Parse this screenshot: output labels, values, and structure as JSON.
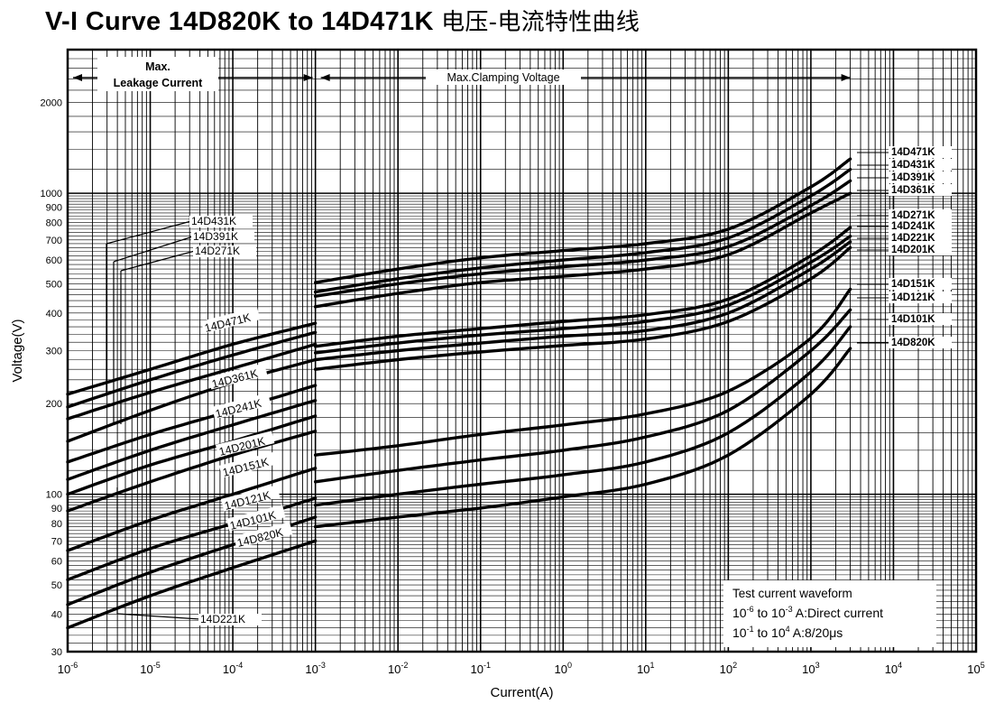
{
  "title": "V-I Curve 14D820K to 14D471K",
  "title_cn": "电压-电流特性曲线",
  "chart_data": {
    "type": "line",
    "title": "V-I Curve 14D820K to 14D471K 电压-电流特性曲线",
    "xlabel": "Current(A)",
    "ylabel": "Voltage(V)",
    "x_scale": "log",
    "y_scale": "log",
    "xlim": [
      1e-06,
      100000
    ],
    "ylim": [
      30,
      3000
    ],
    "grid": true,
    "x_ticks": [
      {
        "value": 1e-06,
        "base": "10",
        "exp": "-6"
      },
      {
        "value": 1e-05,
        "base": "10",
        "exp": "-5"
      },
      {
        "value": 0.0001,
        "base": "10",
        "exp": "-4"
      },
      {
        "value": 0.001,
        "base": "10",
        "exp": "-3"
      },
      {
        "value": 0.01,
        "base": "10",
        "exp": "-2"
      },
      {
        "value": 0.1,
        "base": "10",
        "exp": "-1"
      },
      {
        "value": 1,
        "base": "10",
        "exp": "0"
      },
      {
        "value": 10,
        "base": "10",
        "exp": "1"
      },
      {
        "value": 100,
        "base": "10",
        "exp": "2"
      },
      {
        "value": 1000,
        "base": "10",
        "exp": "3"
      },
      {
        "value": 10000,
        "base": "10",
        "exp": "4"
      },
      {
        "value": 100000,
        "base": "10",
        "exp": "5"
      }
    ],
    "y_ticks": [
      {
        "value": 30,
        "label": "30"
      },
      {
        "value": 40,
        "label": "40"
      },
      {
        "value": 50,
        "label": "50"
      },
      {
        "value": 60,
        "label": "60"
      },
      {
        "value": 70,
        "label": "70"
      },
      {
        "value": 80,
        "label": "80"
      },
      {
        "value": 90,
        "label": "90"
      },
      {
        "value": 100,
        "label": "100"
      },
      {
        "value": 200,
        "label": "200"
      },
      {
        "value": 300,
        "label": "300"
      },
      {
        "value": 400,
        "label": "400"
      },
      {
        "value": 500,
        "label": "500"
      },
      {
        "value": 600,
        "label": "600"
      },
      {
        "value": 700,
        "label": "700"
      },
      {
        "value": 800,
        "label": "800"
      },
      {
        "value": 900,
        "label": "900"
      },
      {
        "value": 1000,
        "label": "1000"
      },
      {
        "value": 2000,
        "label": "2000"
      }
    ],
    "series": [
      {
        "name": "14D471K",
        "leakage": [
          [
            1e-06,
            215
          ],
          [
            1e-05,
            260
          ],
          [
            0.0001,
            315
          ],
          [
            0.001,
            370
          ]
        ],
        "clamping": [
          [
            0.001,
            505
          ],
          [
            0.01,
            560
          ],
          [
            0.1,
            610
          ],
          [
            1,
            645
          ],
          [
            10,
            680
          ],
          [
            100,
            760
          ],
          [
            1000,
            1050
          ],
          [
            3000,
            1300
          ]
        ]
      },
      {
        "name": "14D431K",
        "leakage": [
          [
            1e-06,
            195
          ],
          [
            1e-05,
            240
          ],
          [
            0.0001,
            290
          ],
          [
            0.001,
            345
          ]
        ],
        "clamping": [
          [
            0.001,
            470
          ],
          [
            0.01,
            520
          ],
          [
            0.1,
            565
          ],
          [
            1,
            600
          ],
          [
            10,
            635
          ],
          [
            100,
            710
          ],
          [
            1000,
            980
          ],
          [
            3000,
            1200
          ]
        ]
      },
      {
        "name": "14D391K",
        "leakage": [
          [
            1e-06,
            178
          ],
          [
            1e-05,
            218
          ],
          [
            0.0001,
            262
          ],
          [
            0.001,
            315
          ]
        ],
        "clamping": [
          [
            0.001,
            455
          ],
          [
            0.01,
            500
          ],
          [
            0.1,
            540
          ],
          [
            1,
            570
          ],
          [
            10,
            600
          ],
          [
            100,
            665
          ],
          [
            1000,
            910
          ],
          [
            3000,
            1100
          ]
        ]
      },
      {
        "name": "14D361K",
        "leakage": [
          [
            1e-06,
            150
          ],
          [
            1e-05,
            190
          ],
          [
            0.0001,
            235
          ],
          [
            0.001,
            280
          ]
        ],
        "clamping": [
          [
            0.001,
            420
          ],
          [
            0.01,
            465
          ],
          [
            0.1,
            505
          ],
          [
            1,
            530
          ],
          [
            10,
            560
          ],
          [
            100,
            625
          ],
          [
            1000,
            860
          ],
          [
            3000,
            1000
          ]
        ]
      },
      {
        "name": "14D271K",
        "leakage": [
          [
            1e-06,
            128
          ],
          [
            1e-05,
            158
          ],
          [
            0.0001,
            190
          ],
          [
            0.001,
            230
          ]
        ],
        "clamping": [
          [
            0.001,
            310
          ],
          [
            0.01,
            335
          ],
          [
            0.1,
            355
          ],
          [
            1,
            375
          ],
          [
            10,
            395
          ],
          [
            100,
            445
          ],
          [
            1000,
            620
          ],
          [
            3000,
            770
          ]
        ]
      },
      {
        "name": "14D241K",
        "leakage": [
          [
            1e-06,
            112
          ],
          [
            1e-05,
            140
          ],
          [
            0.0001,
            170
          ],
          [
            0.001,
            205
          ]
        ],
        "clamping": [
          [
            0.001,
            295
          ],
          [
            0.01,
            318
          ],
          [
            0.1,
            338
          ],
          [
            1,
            355
          ],
          [
            10,
            375
          ],
          [
            100,
            425
          ],
          [
            1000,
            590
          ],
          [
            3000,
            720
          ]
        ]
      },
      {
        "name": "14D221K",
        "leakage": [
          [
            1e-06,
            100
          ],
          [
            1e-05,
            125
          ],
          [
            0.0001,
            150
          ],
          [
            0.001,
            182
          ]
        ],
        "clamping": [
          [
            0.001,
            280
          ],
          [
            0.01,
            300
          ],
          [
            0.1,
            318
          ],
          [
            1,
            335
          ],
          [
            10,
            350
          ],
          [
            100,
            400
          ],
          [
            1000,
            560
          ],
          [
            3000,
            690
          ]
        ]
      },
      {
        "name": "14D201K",
        "leakage": [
          [
            1e-06,
            88
          ],
          [
            1e-05,
            110
          ],
          [
            0.0001,
            135
          ],
          [
            0.001,
            162
          ]
        ],
        "clamping": [
          [
            0.001,
            260
          ],
          [
            0.01,
            280
          ],
          [
            0.1,
            297
          ],
          [
            1,
            312
          ],
          [
            10,
            328
          ],
          [
            100,
            375
          ],
          [
            1000,
            520
          ],
          [
            3000,
            660
          ]
        ]
      },
      {
        "name": "14D151K",
        "leakage": [
          [
            1e-06,
            65
          ],
          [
            1e-05,
            82
          ],
          [
            0.0001,
            100
          ],
          [
            0.001,
            122
          ]
        ],
        "clamping": [
          [
            0.001,
            135
          ],
          [
            0.01,
            145
          ],
          [
            0.1,
            158
          ],
          [
            1,
            170
          ],
          [
            10,
            185
          ],
          [
            100,
            220
          ],
          [
            1000,
            330
          ],
          [
            3000,
            480
          ]
        ]
      },
      {
        "name": "14D121K",
        "leakage": [
          [
            1e-06,
            52
          ],
          [
            1e-05,
            66
          ],
          [
            0.0001,
            80
          ],
          [
            0.001,
            97
          ]
        ],
        "clamping": [
          [
            0.001,
            110
          ],
          [
            0.01,
            120
          ],
          [
            0.1,
            130
          ],
          [
            1,
            140
          ],
          [
            10,
            155
          ],
          [
            100,
            190
          ],
          [
            1000,
            300
          ],
          [
            3000,
            410
          ]
        ]
      },
      {
        "name": "14D101K",
        "leakage": [
          [
            1e-06,
            43
          ],
          [
            1e-05,
            55
          ],
          [
            0.0001,
            68
          ],
          [
            0.001,
            84
          ]
        ],
        "clamping": [
          [
            0.001,
            92
          ],
          [
            0.01,
            100
          ],
          [
            0.1,
            108
          ],
          [
            1,
            116
          ],
          [
            10,
            128
          ],
          [
            100,
            160
          ],
          [
            1000,
            255
          ],
          [
            3000,
            360
          ]
        ]
      },
      {
        "name": "14D820K",
        "leakage": [
          [
            1e-06,
            36
          ],
          [
            1e-05,
            46
          ],
          [
            0.0001,
            57
          ],
          [
            0.001,
            70
          ]
        ],
        "clamping": [
          [
            0.001,
            78
          ],
          [
            0.01,
            84
          ],
          [
            0.1,
            90
          ],
          [
            1,
            98
          ],
          [
            10,
            108
          ],
          [
            100,
            135
          ],
          [
            1000,
            215
          ],
          [
            3000,
            305
          ]
        ]
      }
    ],
    "annotations": {
      "leakage_range": [
        "Max.",
        "Leakage Current"
      ],
      "clamping_range": "Max.Clamping Voltage",
      "waveform_title": "Test current waveform",
      "waveform_dc": {
        "from_base": "10",
        "from_exp": "-6",
        "to": "to",
        "to_base": "10",
        "to_exp": "-3",
        "desc": "A:Direct current"
      },
      "waveform_pulse": {
        "from_base": "10",
        "from_exp": "-1",
        "to": "to",
        "to_base": "10",
        "to_exp": "4",
        "desc": "A:8/20μs"
      }
    },
    "right_labels": [
      "14D471K",
      "14D431K",
      "14D391K",
      "14D361K",
      "14D271K",
      "14D241K",
      "14D221K",
      "14D201K",
      "14D151K",
      "14D121K",
      "14D101K",
      "14D820K"
    ],
    "inline_labels": [
      "14D471K",
      "14D361K",
      "14D241K",
      "14D201K",
      "14D151K",
      "14D121K",
      "14D101K",
      "14D820K"
    ],
    "callout_labels": [
      "14D431K",
      "14D391K",
      "14D271K",
      "14D221K"
    ]
  }
}
